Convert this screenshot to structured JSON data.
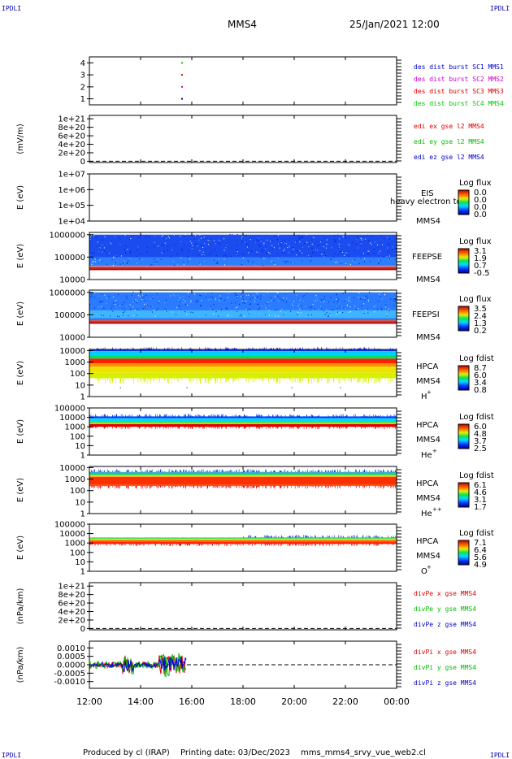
{
  "header": {
    "corner_label": "IPDLI",
    "spacecraft": "MMS4",
    "datetime": "25/Jan/2021 12:00"
  },
  "footer": {
    "produced_by": "Produced by cl (IRAP)",
    "printing_date": "Printing date: 03/Dec/2023",
    "script_name": "mms_mms4_srvy_vue_web2.cl"
  },
  "x_axis": {
    "ticks": [
      "12:00",
      "14:00",
      "16:00",
      "18:00",
      "20:00",
      "22:00",
      "00:00"
    ],
    "range_hours": [
      12,
      24
    ]
  },
  "chart_data": [
    {
      "type": "scatter",
      "panel": "burst",
      "ylabel": "",
      "yticks": [
        "1",
        "2",
        "3",
        "4"
      ],
      "ylim": [
        0.5,
        4.5
      ],
      "series": [
        {
          "name": "des dist burst SC1 MMS1",
          "color": "#0000cc",
          "x": [
            15.62
          ],
          "y": [
            1
          ]
        },
        {
          "name": "des dist burst SC2 MMS2",
          "color": "#cc00cc",
          "x": [
            15.62
          ],
          "y": [
            2
          ]
        },
        {
          "name": "des dist burst SC3 MMS3",
          "color": "#dd0000",
          "x": [
            15.62
          ],
          "y": [
            3
          ]
        },
        {
          "name": "des dist burst SC4 MMS4",
          "color": "#00cc00",
          "x": [
            15.62
          ],
          "y": [
            4
          ]
        }
      ]
    },
    {
      "type": "line",
      "panel": "edi",
      "ylabel": "(mV/m)",
      "yticks": [
        "0",
        "2e+20",
        "4e+20",
        "6e+20",
        "8e+20",
        "1e+21"
      ],
      "ylim": [
        -3e+19,
        1.08e+21
      ],
      "zero_line": true,
      "series": [
        {
          "name": "edi ex gse l2 MMS4",
          "color": "#dd0000"
        },
        {
          "name": "edi ey gse l2 MMS4",
          "color": "#00bb00"
        },
        {
          "name": "edi ez gse l2 MMS4",
          "color": "#0000cc"
        }
      ]
    },
    {
      "type": "heatmap",
      "panel": "eis",
      "ylabel": "E (eV)",
      "yticks": [
        "1e+04",
        "1e+05",
        "1e+06",
        "1e+07"
      ],
      "log_ylim": [
        4,
        7
      ],
      "side_labels": [
        "EIS",
        "MMS4"
      ],
      "overlay_text": "heavy electron to",
      "colorbar": {
        "title": "Log flux",
        "ticks": [
          "0.0",
          "0.0",
          "0.0",
          "0.0"
        ]
      }
    },
    {
      "type": "heatmap",
      "panel": "feepse",
      "ylabel": "E (eV)",
      "yticks": [
        "10000",
        "100000",
        "1000000"
      ],
      "log_ylim": [
        4,
        6.1
      ],
      "side_labels": [
        "FEEPSE",
        "MMS4"
      ],
      "colorbar": {
        "title": "Log flux",
        "ticks": [
          "3.1",
          "1.9",
          "0.7",
          "-0.5"
        ]
      }
    },
    {
      "type": "heatmap",
      "panel": "feepsi",
      "ylabel": "E (eV)",
      "yticks": [
        "10000",
        "100000",
        "1000000"
      ],
      "log_ylim": [
        4,
        6.1
      ],
      "side_labels": [
        "FEEPSI",
        "MMS4"
      ],
      "colorbar": {
        "title": "Log flux",
        "ticks": [
          "3.5",
          "2.4",
          "1.3",
          "0.2"
        ]
      }
    },
    {
      "type": "heatmap",
      "panel": "hpca_h",
      "ylabel": "E (eV)",
      "yticks": [
        "1",
        "10",
        "100",
        "1000",
        "10000"
      ],
      "log_ylim": [
        0,
        4.1
      ],
      "side_labels": [
        "HPCA",
        "MMS4"
      ],
      "species": "H",
      "species_sup": "+",
      "colorbar": {
        "title": "Log fdist",
        "ticks": [
          "8.7",
          "6.0",
          "3.4",
          "0.8"
        ]
      }
    },
    {
      "type": "heatmap",
      "panel": "hpca_he",
      "ylabel": "E (eV)",
      "yticks": [
        "1",
        "10",
        "100",
        "1000",
        "10000",
        "100000"
      ],
      "log_ylim": [
        0,
        5
      ],
      "side_labels": [
        "HPCA",
        "MMS4"
      ],
      "species": "He",
      "species_sup": "+",
      "colorbar": {
        "title": "Log fdist",
        "ticks": [
          "6.0",
          "4.8",
          "3.7",
          "2.5"
        ]
      }
    },
    {
      "type": "heatmap",
      "panel": "hpca_hepp",
      "ylabel": "E (eV)",
      "yticks": [
        "1",
        "10",
        "100",
        "1000",
        "10000"
      ],
      "log_ylim": [
        0,
        4.1
      ],
      "side_labels": [
        "HPCA",
        "MMS4"
      ],
      "species": "He",
      "species_sup": "++",
      "colorbar": {
        "title": "Log fdist",
        "ticks": [
          "6.1",
          "4.6",
          "3.1",
          "1.7"
        ]
      }
    },
    {
      "type": "heatmap",
      "panel": "hpca_o",
      "ylabel": "E (eV)",
      "yticks": [
        "1",
        "10",
        "100",
        "1000",
        "10000",
        "100000"
      ],
      "log_ylim": [
        0,
        5
      ],
      "side_labels": [
        "HPCA",
        "MMS4"
      ],
      "species": "O",
      "species_sup": "+",
      "colorbar": {
        "title": "Log fdist",
        "ticks": [
          "7.1",
          "6.4",
          "5.6",
          "4.9"
        ]
      }
    },
    {
      "type": "line",
      "panel": "divpe",
      "ylabel": "(nPa/km)",
      "yticks": [
        "0",
        "2e+20",
        "4e+20",
        "6e+20",
        "8e+20",
        "1e+21"
      ],
      "ylim": [
        -3e+19,
        1.08e+21
      ],
      "zero_line": true,
      "series": [
        {
          "name": "divPe x gse MMS4",
          "color": "#dd0000"
        },
        {
          "name": "divPe y gse MMS4",
          "color": "#00bb00"
        },
        {
          "name": "divPe z gse MMS4",
          "color": "#0000cc"
        }
      ]
    },
    {
      "type": "line",
      "panel": "divpi",
      "ylabel": "(nPa/km)",
      "yticks": [
        "-0.0010",
        "-0.0005",
        "0.0000",
        "0.0005",
        "0.0010"
      ],
      "ylim": [
        -0.0014,
        0.0014
      ],
      "zero_line": true,
      "data_end_hours": 15.8,
      "series": [
        {
          "name": "divPi x gse MMS4",
          "color": "#dd0000"
        },
        {
          "name": "divPi y gse MMS4",
          "color": "#00bb00"
        },
        {
          "name": "divPi z gse MMS4",
          "color": "#0000cc"
        }
      ]
    }
  ]
}
